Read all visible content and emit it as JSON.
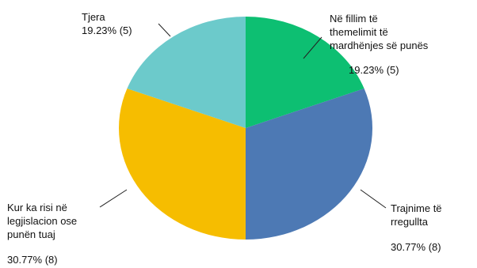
{
  "chart_data": {
    "type": "pie",
    "slices": [
      {
        "label_lines": [
          "Në fillim të",
          "themelimit të",
          "mardhënjes së punës"
        ],
        "value_text": "19.23% (5)",
        "percent": 19.23,
        "count": 5,
        "color": "#0dbf72"
      },
      {
        "label_lines": [
          "Trajnime të",
          "rregullta"
        ],
        "value_text": "30.77% (8)",
        "percent": 30.77,
        "count": 8,
        "color": "#4d79b4"
      },
      {
        "label_lines": [
          "Kur ka risi në",
          "legjislacion ose",
          "punën tuaj"
        ],
        "value_text": "30.77% (8)",
        "percent": 30.77,
        "count": 8,
        "color": "#f6bd00"
      },
      {
        "label_lines": [
          "Tjera"
        ],
        "value_text": "19.23% (5)",
        "percent": 19.23,
        "count": 5,
        "color": "#6ccacb"
      }
    ]
  }
}
